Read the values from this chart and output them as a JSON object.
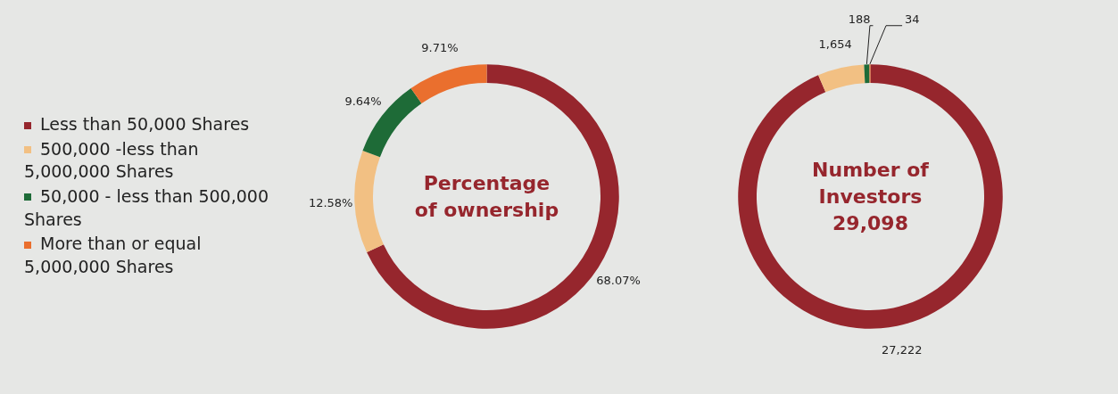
{
  "chart_data": [
    {
      "type": "donut",
      "title": "Percentage\nof ownership",
      "legend": "left",
      "categories": [
        "Less than 50,000 Shares",
        "500,000 -less than 5,000,000 Shares",
        "50,000 - less than 500,000 Shares",
        "More than or equal 5,000,000 Shares"
      ],
      "values": [
        68.07,
        12.58,
        9.64,
        9.71
      ],
      "colors": [
        "#96262d",
        "#f2c083",
        "#1e6b37",
        "#ea6f2e"
      ],
      "value_labels": [
        "68.07%",
        "12.58%",
        "9.64%",
        "9.71%"
      ]
    },
    {
      "type": "donut",
      "title": "Number of\nInvestors\n29,098",
      "categories": [
        null,
        null,
        null,
        null
      ],
      "values": [
        27222,
        1654,
        188,
        34
      ],
      "colors": [
        "#96262d",
        "#f2c083",
        "#1e6b37",
        "#ea6f2e"
      ],
      "value_labels": [
        "27,222",
        "1,654",
        "188",
        "34"
      ]
    }
  ]
}
